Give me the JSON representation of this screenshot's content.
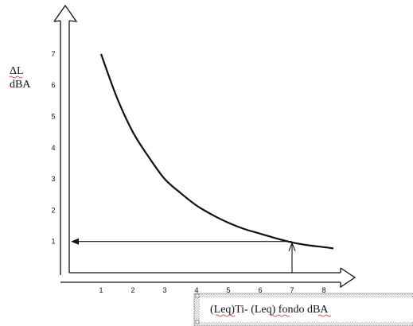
{
  "chart_data": {
    "type": "line",
    "ylabel_line1": "ΔL",
    "ylabel_line2": "dBA",
    "xlabel": "(Leq)Ti- (Leq) fondo dBA",
    "x_ticks": [
      "1",
      "2",
      "3",
      "4",
      "5",
      "6",
      "7",
      "8"
    ],
    "y_ticks": [
      "1",
      "2",
      "3",
      "4",
      "5",
      "6",
      "7"
    ],
    "xlim": [
      0,
      8.7
    ],
    "ylim": [
      0,
      7.5
    ],
    "grid": false,
    "series": [
      {
        "points": [
          {
            "x": 1.0,
            "y": 7.0
          },
          {
            "x": 1.5,
            "y": 5.6
          },
          {
            "x": 2.0,
            "y": 4.5
          },
          {
            "x": 2.5,
            "y": 3.7
          },
          {
            "x": 3.0,
            "y": 3.0
          },
          {
            "x": 3.5,
            "y": 2.55
          },
          {
            "x": 4.0,
            "y": 2.15
          },
          {
            "x": 4.5,
            "y": 1.85
          },
          {
            "x": 5.0,
            "y": 1.6
          },
          {
            "x": 5.5,
            "y": 1.4
          },
          {
            "x": 6.0,
            "y": 1.25
          },
          {
            "x": 6.5,
            "y": 1.1
          },
          {
            "x": 7.0,
            "y": 0.97
          },
          {
            "x": 7.5,
            "y": 0.88
          },
          {
            "x": 8.0,
            "y": 0.82
          },
          {
            "x": 8.3,
            "y": 0.78
          }
        ]
      }
    ],
    "annotation": {
      "x": 7.0,
      "y": 1.0
    }
  },
  "colors": {
    "ink": "#111111",
    "squiggle": "#cc2222",
    "box_border": "#555555"
  }
}
